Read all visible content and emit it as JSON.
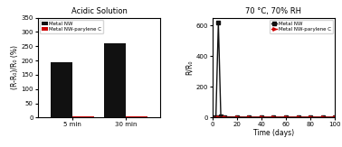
{
  "chart_data": [
    {
      "type": "bar",
      "title": "Acidic Solution",
      "ylabel": "(R-R₀)/R₀ (%)",
      "categories": [
        "5 min",
        "30 min"
      ],
      "series": [
        {
          "name": "Metal NW",
          "color": "#111111",
          "values": [
            195,
            260
          ]
        },
        {
          "name": "Metal NW-parylene C",
          "color": "#cc0000",
          "values": [
            3,
            5
          ]
        }
      ],
      "ylim": [
        0,
        350
      ],
      "yticks": [
        0,
        50,
        100,
        150,
        200,
        250,
        300,
        350
      ],
      "legend": "upper left"
    },
    {
      "type": "line",
      "title": "70 °C, 70% RH",
      "xlabel": "Time (days)",
      "ylabel": "R/R₀",
      "series": [
        {
          "name": "Metal NW",
          "color": "#111111",
          "marker": "square",
          "x": [
            0,
            3,
            5,
            7,
            10,
            20,
            30,
            40,
            50,
            60,
            70,
            80,
            90,
            100
          ],
          "values": [
            1,
            2,
            620,
            10,
            5,
            4,
            3,
            3,
            3,
            3,
            3,
            3,
            3,
            3
          ]
        },
        {
          "name": "Metal NW-parylene C",
          "color": "#cc0000",
          "marker": "triangle_right",
          "x": [
            0,
            5,
            10,
            20,
            30,
            40,
            50,
            60,
            70,
            80,
            90,
            100
          ],
          "values": [
            1,
            1.2,
            1.3,
            1.5,
            1.5,
            2,
            2,
            2,
            2,
            2,
            2,
            2
          ]
        }
      ],
      "xlim": [
        0,
        100
      ],
      "xticks": [
        0,
        20,
        40,
        60,
        80,
        100
      ],
      "ylim": [
        0,
        650
      ],
      "yticks": [
        0,
        200,
        400,
        600
      ],
      "legend": "upper right"
    }
  ]
}
